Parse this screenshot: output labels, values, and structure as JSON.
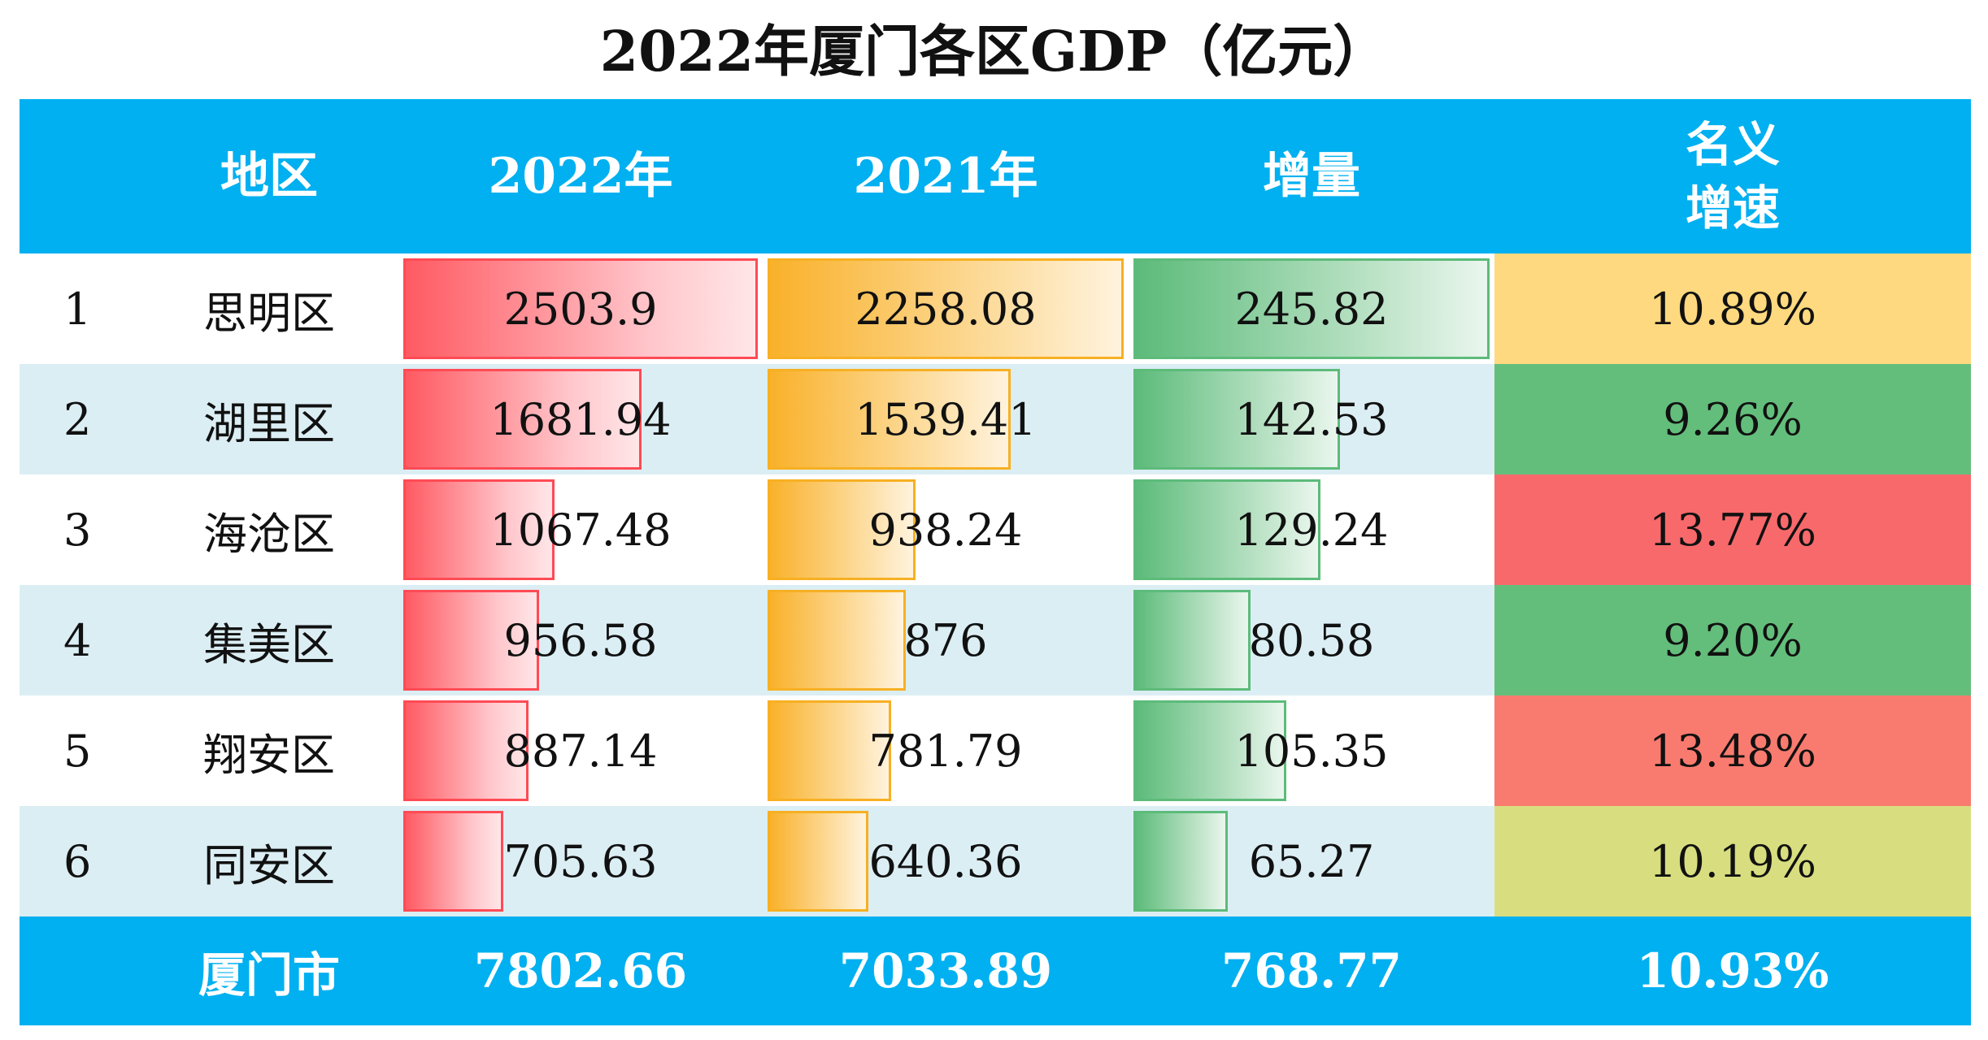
{
  "chart_data": {
    "type": "table",
    "title": "2022年厦门各区GDP（亿元）",
    "headers": [
      "",
      "地区",
      "2022年",
      "2021年",
      "增量",
      "名义\n增速"
    ],
    "header_labels": {
      "region": "地区",
      "y2022": "2022年",
      "y2021": "2021年",
      "increase": "增量",
      "rate_line1": "名义",
      "rate_line2": "增速"
    },
    "rows": [
      {
        "index": "1",
        "region": "思明区",
        "y2022": "2503.9",
        "y2021": "2258.08",
        "increase": "245.82",
        "rate": "10.89%",
        "rate_color": "#ffd97f",
        "v2022": 2503.9,
        "v2021": 2258.08,
        "vinc": 245.82
      },
      {
        "index": "2",
        "region": "湖里区",
        "y2022": "1681.94",
        "y2021": "1539.41",
        "increase": "142.53",
        "rate": "9.26%",
        "rate_color": "#63be7b",
        "v2022": 1681.94,
        "v2021": 1539.41,
        "vinc": 142.53
      },
      {
        "index": "3",
        "region": "海沧区",
        "y2022": "1067.48",
        "y2021": "938.24",
        "increase": "129.24",
        "rate": "13.77%",
        "rate_color": "#f8696b",
        "v2022": 1067.48,
        "v2021": 938.24,
        "vinc": 129.24
      },
      {
        "index": "4",
        "region": "集美区",
        "y2022": "956.58",
        "y2021": "876",
        "increase": "80.58",
        "rate": "9.20%",
        "rate_color": "#63be7b",
        "v2022": 956.58,
        "v2021": 876,
        "vinc": 80.58
      },
      {
        "index": "5",
        "region": "翔安区",
        "y2022": "887.14",
        "y2021": "781.79",
        "increase": "105.35",
        "rate": "13.48%",
        "rate_color": "#f97b6f",
        "v2022": 887.14,
        "v2021": 781.79,
        "vinc": 105.35
      },
      {
        "index": "6",
        "region": "同安区",
        "y2022": "705.63",
        "y2021": "640.36",
        "increase": "65.27",
        "rate": "10.19%",
        "rate_color": "#d8de7f",
        "v2022": 705.63,
        "v2021": 640.36,
        "vinc": 65.27
      }
    ],
    "total": {
      "region": "厦门市",
      "y2022": "7802.66",
      "y2021": "7033.89",
      "increase": "768.77",
      "rate": "10.93%"
    },
    "bar_max": {
      "y2022": 2503.9,
      "y2021": 2258.08,
      "increase": 245.82
    },
    "colors": {
      "header_bg": "#00b0f0",
      "alt_row_bg": "#dbeef4",
      "bar_2022": "#ff5a62",
      "bar_2021": "#f9b12a",
      "bar_increase": "#5cbb7a"
    }
  }
}
